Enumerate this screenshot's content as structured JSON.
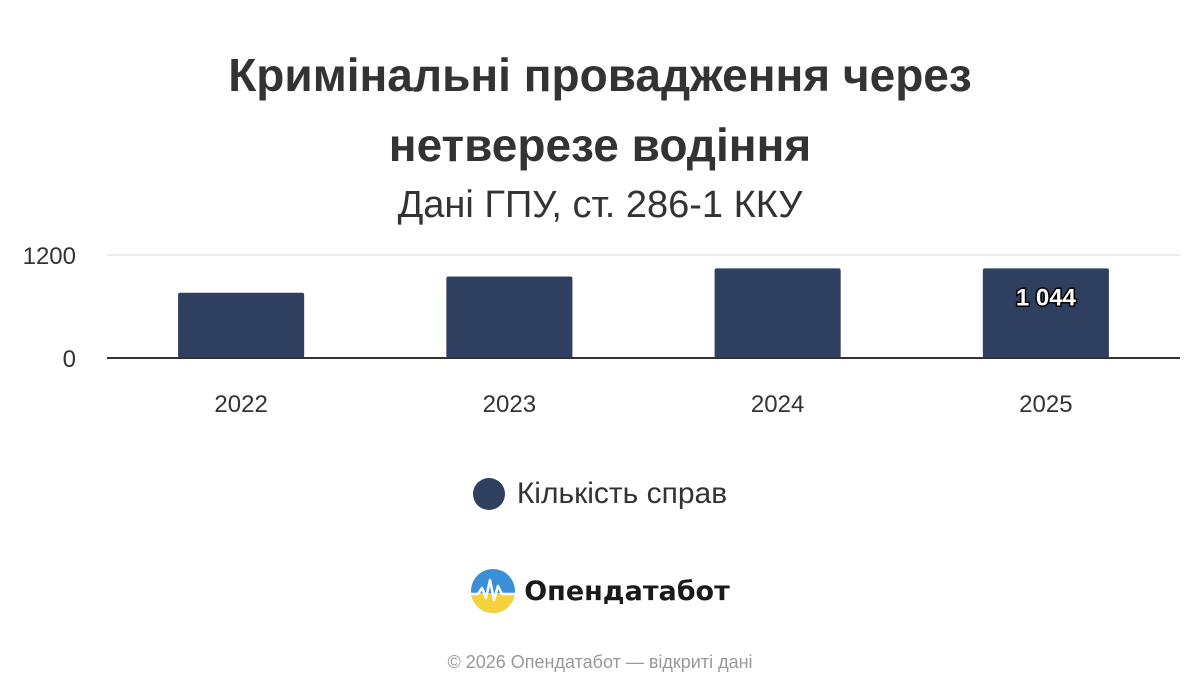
{
  "colors": {
    "bar": "#2f3f5f",
    "grid": "#e6e6e6",
    "axis": "#333333",
    "text": "#333333",
    "credits": "#999999",
    "logo_blue": "#3b8fd9",
    "logo_yellow": "#f5d23a"
  },
  "chart_data": {
    "type": "bar",
    "title": "Кримінальні провадження через нетверезе водіння",
    "subtitle": "Дані ГПУ, ст. 286-1 ККУ",
    "categories": [
      "2022",
      "2023",
      "2024",
      "2025"
    ],
    "series": [
      {
        "name": "Кількість справ",
        "values": [
          760,
          950,
          1044,
          1044
        ],
        "data_labels": [
          "",
          "",
          "",
          "1 044"
        ]
      }
    ],
    "ylim": [
      0,
      1200
    ],
    "yticks": [
      "0",
      "1200"
    ],
    "xlabel": "",
    "ylabel": "",
    "grid": true,
    "legend": "bottom-center"
  },
  "brand": {
    "icon": "opendatabot-logo-icon",
    "name": "Опендатабот"
  },
  "credits": "© 2026 Опендатабот — відкриті дані"
}
